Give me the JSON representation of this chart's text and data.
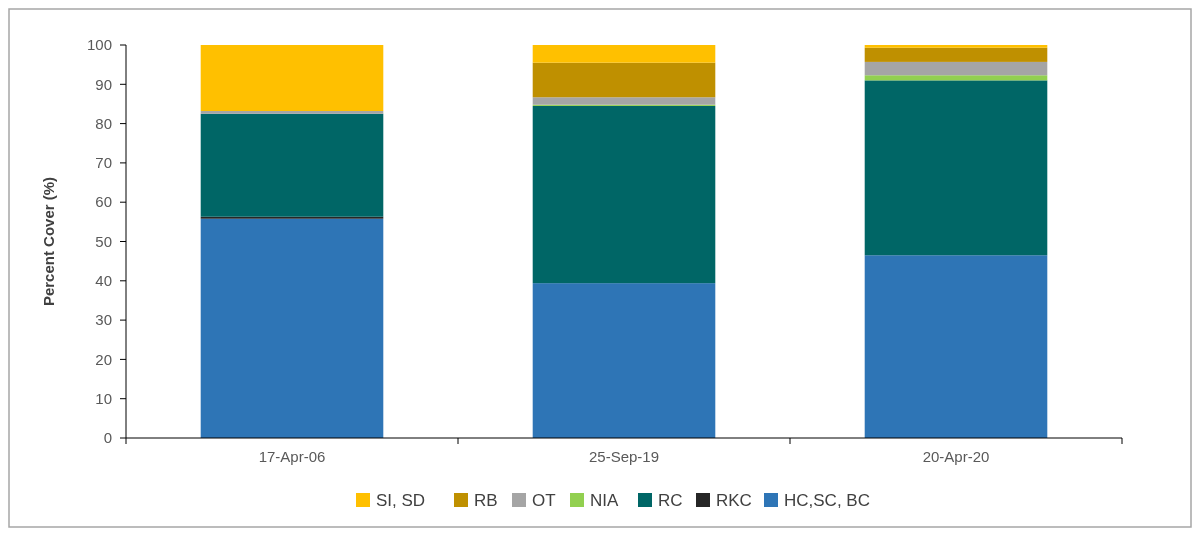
{
  "chart_data": {
    "type": "bar",
    "stacked": true,
    "ylabel": "Percent Cover (%)",
    "categories": [
      "17-Apr-06",
      "25-Sep-19",
      "20-Apr-20"
    ],
    "series": [
      {
        "name": "HC,SC, BC",
        "color": "#2e75b6",
        "values": [
          55.8,
          39.4,
          46.5
        ]
      },
      {
        "name": "RKC",
        "color": "#262626",
        "values": [
          0.5,
          0,
          0
        ]
      },
      {
        "name": "RC",
        "color": "#006666",
        "values": [
          26.2,
          45.1,
          44.5
        ]
      },
      {
        "name": "NIA",
        "color": "#92d050",
        "values": [
          0,
          0.3,
          1.3
        ]
      },
      {
        "name": "OT",
        "color": "#a5a5a5",
        "values": [
          0.7,
          1.9,
          3.4
        ]
      },
      {
        "name": "RB",
        "color": "#bf9000",
        "values": [
          0,
          8.8,
          3.6
        ]
      },
      {
        "name": "SI, SD",
        "color": "#ffc000",
        "values": [
          16.8,
          4.5,
          0.7
        ]
      }
    ],
    "ylim": [
      0,
      100
    ],
    "yticks": [
      0,
      10,
      20,
      30,
      40,
      50,
      60,
      70,
      80,
      90,
      100
    ],
    "grid": false,
    "legend": "bottom"
  }
}
